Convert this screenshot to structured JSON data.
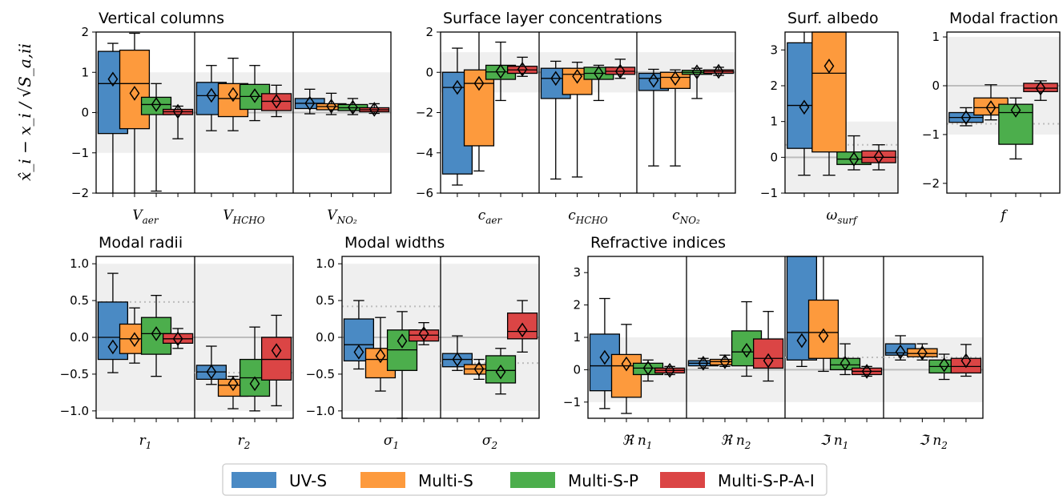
{
  "chart_data": {
    "type": "box",
    "y_axis_label": "x̂_i − x_i / √S_a,ii",
    "series": [
      {
        "name": "UV-S",
        "color": "#4a8ac4"
      },
      {
        "name": "Multi-S",
        "color": "#fd9a3d"
      },
      {
        "name": "Multi-S-P",
        "color": "#4cae4c"
      },
      {
        "name": "Multi-S-P-A-I",
        "color": "#db4545"
      }
    ],
    "panels": [
      {
        "title": "Vertical columns",
        "ylim": [
          -2,
          2
        ],
        "yticks": [
          "-2",
          "-1",
          "0",
          "1",
          "2"
        ],
        "shade": [
          -1,
          1
        ],
        "groups": [
          {
            "label": "V_aer",
            "ref_line": null,
            "boxes": [
              {
                "q1": -0.52,
                "median": 0.72,
                "q3": 1.52,
                "whislo": -2.2,
                "whishi": 1.72,
                "mean": 0.83
              },
              {
                "q1": -0.4,
                "median": 0.72,
                "q3": 1.55,
                "whislo": -2.2,
                "whishi": 1.97,
                "mean": 0.48
              },
              {
                "q1": -0.05,
                "median": 0.2,
                "q3": 0.38,
                "whislo": -1.95,
                "whishi": 0.72,
                "mean": 0.2
              },
              {
                "q1": -0.05,
                "median": 0.02,
                "q3": 0.08,
                "whislo": -0.65,
                "whishi": 0.16,
                "mean": 0.03
              }
            ]
          },
          {
            "label": "V_HCHO",
            "ref_line": null,
            "boxes": [
              {
                "q1": -0.05,
                "median": 0.42,
                "q3": 0.75,
                "whislo": -0.45,
                "whishi": 1.17,
                "mean": 0.43
              },
              {
                "q1": -0.1,
                "median": 0.35,
                "q3": 0.72,
                "whislo": -0.45,
                "whishi": 1.35,
                "mean": 0.45
              },
              {
                "q1": 0.08,
                "median": 0.4,
                "q3": 0.7,
                "whislo": -0.2,
                "whishi": 1.17,
                "mean": 0.42
              },
              {
                "q1": 0.05,
                "median": 0.28,
                "q3": 0.47,
                "whislo": -0.1,
                "whishi": 0.68,
                "mean": 0.28
              }
            ]
          },
          {
            "label": "V_NO2",
            "ref_line": null,
            "boxes": [
              {
                "q1": 0.1,
                "median": 0.23,
                "q3": 0.35,
                "whislo": -0.03,
                "whishi": 0.58,
                "mean": 0.23
              },
              {
                "q1": 0.07,
                "median": 0.15,
                "q3": 0.22,
                "whislo": -0.05,
                "whishi": 0.48,
                "mean": 0.16
              },
              {
                "q1": 0.05,
                "median": 0.12,
                "q3": 0.2,
                "whislo": -0.05,
                "whishi": 0.35,
                "mean": 0.13
              },
              {
                "q1": 0.02,
                "median": 0.07,
                "q3": 0.12,
                "whislo": -0.02,
                "whishi": 0.22,
                "mean": 0.08
              }
            ]
          }
        ]
      },
      {
        "title": "Surface layer concentrations",
        "ylim": [
          -6,
          2
        ],
        "yticks": [
          "-6",
          "-4",
          "-2",
          "0",
          "2"
        ],
        "shade": [
          -1,
          1
        ],
        "groups": [
          {
            "label": "c_aer",
            "ref_line": null,
            "boxes": [
              {
                "q1": -5.05,
                "median": -0.75,
                "q3": 0.0,
                "whislo": -5.6,
                "whishi": 1.2,
                "mean": -0.75
              },
              {
                "q1": -3.65,
                "median": -0.55,
                "q3": 0.12,
                "whislo": -4.9,
                "whishi": 2.2,
                "mean": -0.55
              },
              {
                "q1": -0.35,
                "median": 0.02,
                "q3": 0.35,
                "whislo": -1.4,
                "whishi": 1.5,
                "mean": 0.05
              },
              {
                "q1": -0.05,
                "median": 0.12,
                "q3": 0.3,
                "whislo": -0.2,
                "whishi": 0.75,
                "mean": 0.15
              }
            ]
          },
          {
            "label": "c_HCHO",
            "ref_line": null,
            "boxes": [
              {
                "q1": -1.3,
                "median": -0.3,
                "q3": 0.2,
                "whislo": -5.3,
                "whishi": 0.55,
                "mean": -0.3
              },
              {
                "q1": -1.1,
                "median": -0.1,
                "q3": 0.2,
                "whislo": -5.2,
                "whishi": 0.5,
                "mean": -0.2
              },
              {
                "q1": -0.35,
                "median": -0.05,
                "q3": 0.25,
                "whislo": -1.4,
                "whishi": 0.35,
                "mean": -0.05
              },
              {
                "q1": -0.1,
                "median": 0.05,
                "q3": 0.25,
                "whislo": -0.3,
                "whishi": 0.65,
                "mean": 0.05
              }
            ]
          },
          {
            "label": "c_NO2",
            "ref_line": null,
            "boxes": [
              {
                "q1": -0.9,
                "median": -0.3,
                "q3": -0.05,
                "whislo": -4.65,
                "whishi": 0.15,
                "mean": -0.4
              },
              {
                "q1": -0.8,
                "median": -0.25,
                "q3": 0.0,
                "whislo": -4.65,
                "whishi": 0.12,
                "mean": -0.3
              },
              {
                "q1": -0.1,
                "median": 0.0,
                "q3": 0.1,
                "whislo": -1.3,
                "whishi": 0.2,
                "mean": 0.02
              },
              {
                "q1": -0.05,
                "median": 0.05,
                "q3": 0.12,
                "whislo": -0.15,
                "whishi": 0.25,
                "mean": 0.05
              }
            ]
          }
        ]
      },
      {
        "title": "Surf. albedo",
        "ylim": [
          -1,
          3.5
        ],
        "yticks": [
          "-1",
          "0",
          "1",
          "2",
          "3"
        ],
        "shade": [
          -1,
          1
        ],
        "groups": [
          {
            "label": "ω_surf",
            "ref_line": 0.35,
            "boxes": [
              {
                "q1": 0.25,
                "median": 1.45,
                "q3": 3.2,
                "whislo": -0.5,
                "whishi": 3.6,
                "mean": 1.4
              },
              {
                "q1": 0.15,
                "median": 2.35,
                "q3": 3.6,
                "whislo": -0.5,
                "whishi": 3.6,
                "mean": 2.55
              },
              {
                "q1": -0.2,
                "median": -0.05,
                "q3": 0.15,
                "whislo": -0.35,
                "whishi": 0.6,
                "mean": -0.05
              },
              {
                "q1": -0.15,
                "median": 0.0,
                "q3": 0.18,
                "whislo": -0.35,
                "whishi": 0.35,
                "mean": 0.02
              }
            ]
          }
        ]
      },
      {
        "title": "Modal fraction",
        "ylim": [
          -2.2,
          1.1
        ],
        "yticks": [
          "-2",
          "-1",
          "0",
          "1"
        ],
        "shade": [
          -1,
          1
        ],
        "groups": [
          {
            "label": "f",
            "ref_line": -0.78,
            "boxes": [
              {
                "q1": -0.75,
                "median": -0.65,
                "q3": -0.55,
                "whislo": -0.82,
                "whishi": -0.45,
                "mean": -0.65
              },
              {
                "q1": -0.6,
                "median": -0.45,
                "q3": -0.25,
                "whislo": -0.7,
                "whishi": 0.02,
                "mean": -0.45
              },
              {
                "q1": -1.2,
                "median": -0.55,
                "q3": -0.38,
                "whislo": -1.5,
                "whishi": -0.25,
                "mean": -0.5
              },
              {
                "q1": -0.12,
                "median": -0.05,
                "q3": 0.05,
                "whislo": -0.3,
                "whishi": 0.1,
                "mean": -0.05
              }
            ]
          }
        ]
      },
      {
        "title": "Modal radii",
        "ylim": [
          -1.1,
          1.1
        ],
        "yticks": [
          "-1.0",
          "-0.5",
          "0.0",
          "0.5",
          "1.0"
        ],
        "shade": [
          -1,
          1
        ],
        "groups": [
          {
            "label": "r_1",
            "ref_line": 0.48,
            "boxes": [
              {
                "q1": -0.3,
                "median": 0.0,
                "q3": 0.48,
                "whislo": -0.48,
                "whishi": 0.87,
                "mean": -0.13
              },
              {
                "q1": -0.22,
                "median": -0.02,
                "q3": 0.18,
                "whislo": -0.35,
                "whishi": 0.4,
                "mean": -0.03
              },
              {
                "q1": -0.23,
                "median": 0.05,
                "q3": 0.27,
                "whislo": -0.53,
                "whishi": 0.57,
                "mean": 0.05
              },
              {
                "q1": -0.08,
                "median": -0.02,
                "q3": 0.05,
                "whislo": -0.15,
                "whishi": 0.12,
                "mean": -0.02
              }
            ]
          },
          {
            "label": "r_2",
            "ref_line": -0.48,
            "boxes": [
              {
                "q1": -0.57,
                "median": -0.47,
                "q3": -0.38,
                "whislo": -0.64,
                "whishi": -0.12,
                "mean": -0.47
              },
              {
                "q1": -0.8,
                "median": -0.65,
                "q3": -0.57,
                "whislo": -0.97,
                "whishi": -0.53,
                "mean": -0.63
              },
              {
                "q1": -0.8,
                "median": -0.55,
                "q3": -0.3,
                "whislo": -1.0,
                "whishi": 0.14,
                "mean": -0.63
              },
              {
                "q1": -0.58,
                "median": -0.3,
                "q3": 0.0,
                "whislo": -0.93,
                "whishi": 0.3,
                "mean": -0.18
              }
            ]
          }
        ]
      },
      {
        "title": "Modal widths",
        "ylim": [
          -1.1,
          1.1
        ],
        "yticks": [
          "-1.0",
          "-0.5",
          "0.0",
          "0.5",
          "1.0"
        ],
        "shade": [
          -1,
          1
        ],
        "groups": [
          {
            "label": "σ_1",
            "ref_line": 0.42,
            "boxes": [
              {
                "q1": -0.32,
                "median": -0.1,
                "q3": 0.25,
                "whislo": -0.43,
                "whishi": 0.5,
                "mean": -0.2
              },
              {
                "q1": -0.55,
                "median": -0.3,
                "q3": -0.15,
                "whislo": -0.73,
                "whishi": 0.27,
                "mean": -0.25
              },
              {
                "q1": -0.45,
                "median": -0.17,
                "q3": 0.1,
                "whislo": -1.1,
                "whishi": 0.35,
                "mean": -0.05
              },
              {
                "q1": -0.05,
                "median": 0.03,
                "q3": 0.1,
                "whislo": -0.1,
                "whishi": 0.2,
                "mean": 0.05
              }
            ]
          },
          {
            "label": "σ_2",
            "ref_line": -0.35,
            "boxes": [
              {
                "q1": -0.4,
                "median": -0.3,
                "q3": -0.22,
                "whislo": -0.45,
                "whishi": 0.02,
                "mean": -0.3
              },
              {
                "q1": -0.5,
                "median": -0.43,
                "q3": -0.37,
                "whislo": -0.57,
                "whishi": -0.3,
                "mean": -0.43
              },
              {
                "q1": -0.62,
                "median": -0.45,
                "q3": -0.25,
                "whislo": -0.77,
                "whishi": -0.15,
                "mean": -0.47
              },
              {
                "q1": -0.02,
                "median": 0.08,
                "q3": 0.33,
                "whislo": -0.2,
                "whishi": 0.5,
                "mean": 0.1
              }
            ]
          }
        ]
      },
      {
        "title": "Refractive indices",
        "ylim": [
          -1.5,
          3.5
        ],
        "yticks": [
          "-1",
          "0",
          "1",
          "2",
          "3"
        ],
        "shade": [
          -1,
          1
        ],
        "groups": [
          {
            "label": "ℜ n_1",
            "ref_line": null,
            "boxes": [
              {
                "q1": -0.65,
                "median": 0.12,
                "q3": 1.1,
                "whislo": -1.2,
                "whishi": 2.2,
                "mean": 0.38
              },
              {
                "q1": -0.85,
                "median": 0.12,
                "q3": 0.47,
                "whislo": -1.35,
                "whishi": 1.4,
                "mean": 0.18
              },
              {
                "q1": -0.15,
                "median": 0.05,
                "q3": 0.2,
                "whislo": -0.35,
                "whishi": 0.3,
                "mean": 0.05
              },
              {
                "q1": -0.1,
                "median": -0.02,
                "q3": 0.05,
                "whislo": -0.15,
                "whishi": 0.1,
                "mean": -0.02
              }
            ]
          },
          {
            "label": "ℜ n_2",
            "ref_line": null,
            "boxes": [
              {
                "q1": 0.12,
                "median": 0.2,
                "q3": 0.28,
                "whislo": 0.05,
                "whishi": 0.35,
                "mean": 0.2
              },
              {
                "q1": 0.15,
                "median": 0.25,
                "q3": 0.32,
                "whislo": 0.1,
                "whishi": 0.45,
                "mean": 0.25
              },
              {
                "q1": 0.12,
                "median": 0.55,
                "q3": 1.2,
                "whislo": -0.2,
                "whishi": 2.1,
                "mean": 0.6
              },
              {
                "q1": 0.05,
                "median": 0.35,
                "q3": 0.95,
                "whislo": -0.35,
                "whishi": 1.8,
                "mean": 0.28
              }
            ]
          },
          {
            "label": "ℑ n_1",
            "ref_line": 0.38,
            "boxes": [
              {
                "q1": 0.3,
                "median": 1.15,
                "q3": 3.6,
                "whislo": 0.1,
                "whishi": 3.6,
                "mean": 0.9
              },
              {
                "q1": 0.35,
                "median": 1.15,
                "q3": 2.15,
                "whislo": -0.05,
                "whishi": 3.6,
                "mean": 1.05
              },
              {
                "q1": 0.0,
                "median": 0.15,
                "q3": 0.35,
                "whislo": -0.15,
                "whishi": 0.8,
                "mean": 0.2
              },
              {
                "q1": -0.15,
                "median": -0.05,
                "q3": 0.05,
                "whislo": -0.2,
                "whishi": 0.1,
                "mean": -0.05
              }
            ]
          },
          {
            "label": "ℑ n_2",
            "ref_line": 0.38,
            "boxes": [
              {
                "q1": 0.45,
                "median": 0.52,
                "q3": 0.8,
                "whislo": 0.3,
                "whishi": 1.05,
                "mean": 0.55
              },
              {
                "q1": 0.4,
                "median": 0.5,
                "q3": 0.65,
                "whislo": 0.3,
                "whishi": 0.8,
                "mean": 0.52
              },
              {
                "q1": -0.1,
                "median": 0.1,
                "q3": 0.3,
                "whislo": -0.3,
                "whishi": 0.48,
                "mean": 0.15
              },
              {
                "q1": -0.1,
                "median": 0.1,
                "q3": 0.35,
                "whislo": -0.2,
                "whishi": 0.78,
                "mean": 0.28
              }
            ]
          }
        ]
      }
    ]
  },
  "ui": {
    "background": "#ffffff",
    "shade_color": "#efefef",
    "zero_line_color": "#bdbdbd",
    "ref_line_color": "#bdbdbd"
  }
}
